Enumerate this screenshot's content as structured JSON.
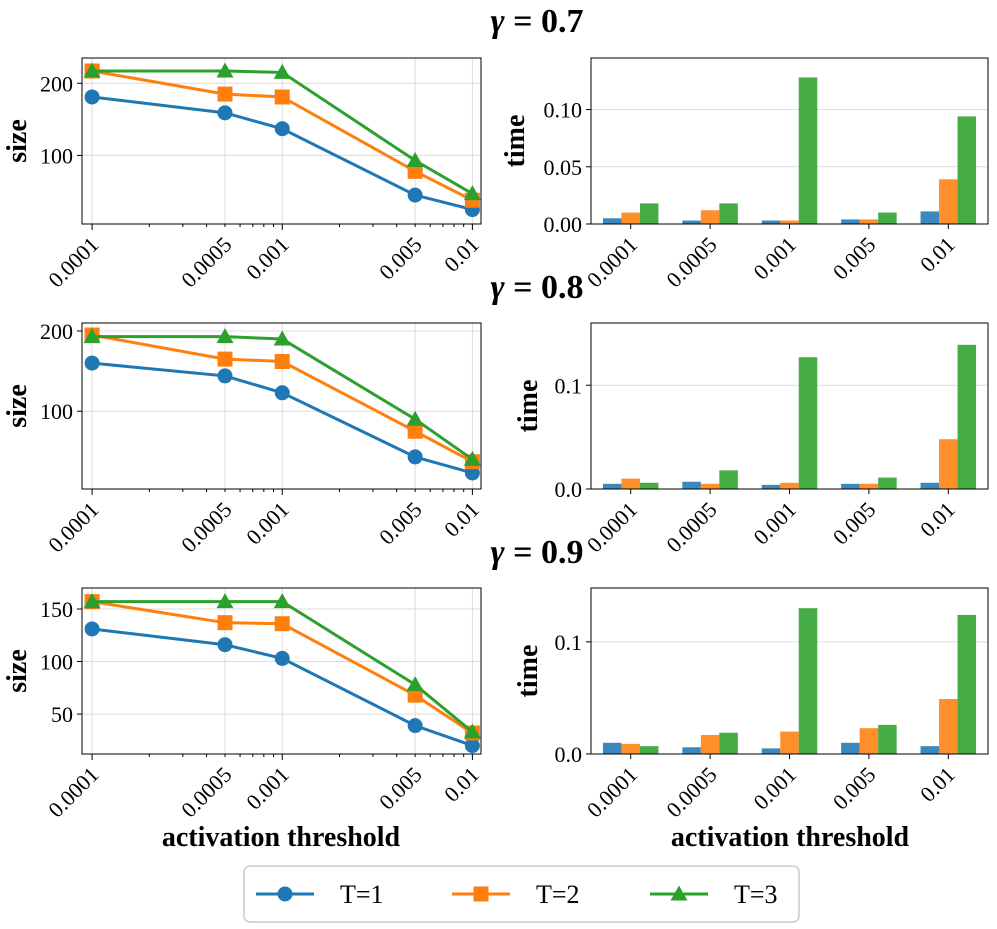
{
  "colors": {
    "T1": "#1f77b4",
    "T2": "#ff7f0e",
    "T3": "#2ca02c"
  },
  "legend": [
    {
      "key": "T1",
      "label": "T=1",
      "marker": "circle"
    },
    {
      "key": "T2",
      "label": "T=2",
      "marker": "square"
    },
    {
      "key": "T3",
      "label": "T=3",
      "marker": "triangle"
    }
  ],
  "thresholds": [
    "0.0001",
    "0.0005",
    "0.001",
    "0.005",
    "0.01"
  ],
  "xlabel": "activation threshold",
  "chart_data": [
    {
      "type": "line",
      "title": "γ = 0.7",
      "title_symbol": "γ",
      "title_rest": " = 0.7",
      "xscale": "log",
      "x": [
        0.0001,
        0.0005,
        0.001,
        0.005,
        0.01
      ],
      "ylabel": "size",
      "ylim": [
        5,
        235
      ],
      "yticks": [
        100,
        200
      ],
      "series": [
        {
          "name": "T=1",
          "values": [
            181,
            159,
            137,
            45,
            25
          ]
        },
        {
          "name": "T=2",
          "values": [
            217,
            185,
            181,
            78,
            38
          ]
        },
        {
          "name": "T=3",
          "values": [
            217,
            217,
            215,
            93,
            47
          ]
        }
      ]
    },
    {
      "type": "bar",
      "xlabel": "",
      "ylabel": "time",
      "categories": [
        "0.0001",
        "0.0005",
        "0.001",
        "0.005",
        "0.01"
      ],
      "ylim": [
        0,
        0.145
      ],
      "yticks": [
        0.0,
        0.05,
        0.1
      ],
      "ytick_labels": [
        "0.00",
        "0.05",
        "0.10"
      ],
      "series": [
        {
          "name": "T=1",
          "values": [
            0.005,
            0.003,
            0.003,
            0.004,
            0.011
          ]
        },
        {
          "name": "T=2",
          "values": [
            0.01,
            0.012,
            0.003,
            0.004,
            0.039
          ]
        },
        {
          "name": "T=3",
          "values": [
            0.018,
            0.018,
            0.128,
            0.01,
            0.094
          ]
        }
      ]
    },
    {
      "type": "line",
      "title": "γ = 0.8",
      "title_symbol": "γ",
      "title_rest": " = 0.8",
      "xscale": "log",
      "x": [
        0.0001,
        0.0005,
        0.001,
        0.005,
        0.01
      ],
      "ylabel": "size",
      "ylim": [
        3,
        210
      ],
      "yticks": [
        100,
        200
      ],
      "series": [
        {
          "name": "T=1",
          "values": [
            160,
            144,
            123,
            43,
            23
          ]
        },
        {
          "name": "T=2",
          "values": [
            195,
            165,
            162,
            75,
            37
          ]
        },
        {
          "name": "T=3",
          "values": [
            193,
            193,
            190,
            90,
            40
          ]
        }
      ]
    },
    {
      "type": "bar",
      "ylabel": "time",
      "categories": [
        "0.0001",
        "0.0005",
        "0.001",
        "0.005",
        "0.01"
      ],
      "ylim": [
        0,
        0.16
      ],
      "yticks": [
        0.0,
        0.1
      ],
      "ytick_labels": [
        "0.0",
        "0.1"
      ],
      "series": [
        {
          "name": "T=1",
          "values": [
            0.005,
            0.007,
            0.004,
            0.005,
            0.006
          ]
        },
        {
          "name": "T=2",
          "values": [
            0.01,
            0.005,
            0.006,
            0.005,
            0.048
          ]
        },
        {
          "name": "T=3",
          "values": [
            0.006,
            0.018,
            0.127,
            0.011,
            0.139
          ]
        }
      ]
    },
    {
      "type": "line",
      "title": "γ = 0.9",
      "title_symbol": "γ",
      "title_rest": " = 0.9",
      "xscale": "log",
      "x": [
        0.0001,
        0.0005,
        0.001,
        0.005,
        0.01
      ],
      "ylabel": "size",
      "ylim": [
        12,
        170
      ],
      "yticks": [
        50,
        100,
        150
      ],
      "series": [
        {
          "name": "T=1",
          "values": [
            131,
            116,
            103,
            39,
            20
          ]
        },
        {
          "name": "T=2",
          "values": [
            157,
            137,
            136,
            68,
            32
          ]
        },
        {
          "name": "T=3",
          "values": [
            157,
            157,
            157,
            78,
            33
          ]
        }
      ]
    },
    {
      "type": "bar",
      "ylabel": "time",
      "categories": [
        "0.0001",
        "0.0005",
        "0.001",
        "0.005",
        "0.01"
      ],
      "ylim": [
        0,
        0.148
      ],
      "yticks": [
        0.0,
        0.1
      ],
      "ytick_labels": [
        "0.0",
        "0.1"
      ],
      "series": [
        {
          "name": "T=1",
          "values": [
            0.01,
            0.006,
            0.005,
            0.01,
            0.007
          ]
        },
        {
          "name": "T=2",
          "values": [
            0.009,
            0.017,
            0.02,
            0.023,
            0.049
          ]
        },
        {
          "name": "T=3",
          "values": [
            0.007,
            0.019,
            0.13,
            0.026,
            0.124
          ]
        }
      ]
    }
  ]
}
